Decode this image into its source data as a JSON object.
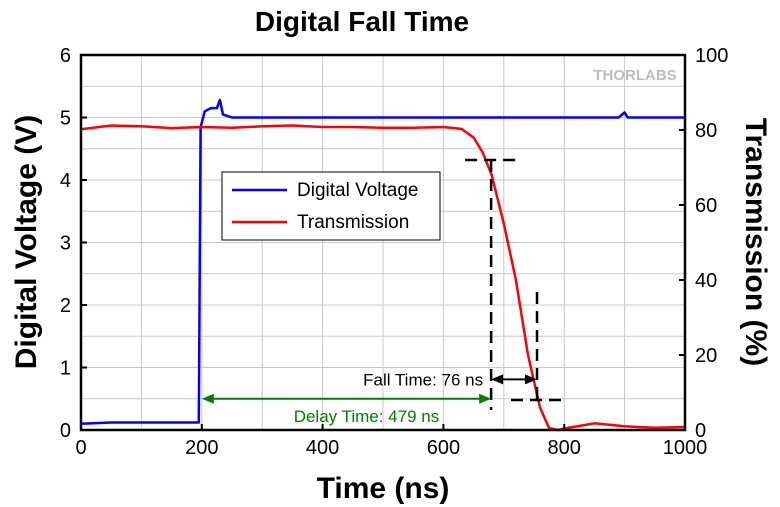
{
  "chart_data": {
    "type": "line",
    "title": "Digital Fall Time",
    "xlabel": "Time (ns)",
    "ylabel_left": "Digital Voltage (V)",
    "ylabel_right": "Transmission (%)",
    "xlim": [
      0,
      1000
    ],
    "ylim_left": [
      0,
      6
    ],
    "ylim_right": [
      0,
      100
    ],
    "x_ticks": [
      "0",
      "200",
      "400",
      "600",
      "800",
      "1000"
    ],
    "y_left_ticks": [
      "0",
      "1",
      "2",
      "3",
      "4",
      "5",
      "6"
    ],
    "y_right_ticks": [
      "0",
      "20",
      "40",
      "60",
      "80",
      "100"
    ],
    "grid": true,
    "legend_position": "center-left",
    "watermark": "THORLABS",
    "series": [
      {
        "name": "Digital Voltage",
        "axis": "left",
        "color": "#0000ff",
        "points": [
          [
            0,
            0.1
          ],
          [
            50,
            0.12
          ],
          [
            100,
            0.12
          ],
          [
            150,
            0.12
          ],
          [
            195,
            0.12
          ],
          [
            198,
            4.85
          ],
          [
            205,
            5.1
          ],
          [
            215,
            5.15
          ],
          [
            225,
            5.15
          ],
          [
            230,
            5.28
          ],
          [
            235,
            5.05
          ],
          [
            250,
            5.0
          ],
          [
            400,
            5.0
          ],
          [
            600,
            5.0
          ],
          [
            890,
            5.0
          ],
          [
            900,
            5.08
          ],
          [
            905,
            5.0
          ],
          [
            1000,
            5.0
          ]
        ]
      },
      {
        "name": "Transmission",
        "axis": "right",
        "color": "#ff0000",
        "points": [
          [
            0,
            80.2
          ],
          [
            50,
            81.2
          ],
          [
            100,
            81.0
          ],
          [
            150,
            80.5
          ],
          [
            200,
            80.8
          ],
          [
            250,
            80.6
          ],
          [
            300,
            81.0
          ],
          [
            350,
            81.2
          ],
          [
            400,
            80.8
          ],
          [
            450,
            80.8
          ],
          [
            500,
            80.6
          ],
          [
            550,
            80.6
          ],
          [
            600,
            80.8
          ],
          [
            630,
            80.3
          ],
          [
            650,
            78.0
          ],
          [
            665,
            74.0
          ],
          [
            680,
            68.0
          ],
          [
            700,
            55.0
          ],
          [
            720,
            40.0
          ],
          [
            740,
            20.0
          ],
          [
            760,
            6.0
          ],
          [
            775,
            0.5
          ],
          [
            790,
            0.0
          ],
          [
            800,
            0.4
          ],
          [
            850,
            1.8
          ],
          [
            900,
            1.0
          ],
          [
            950,
            0.6
          ],
          [
            1000,
            0.8
          ]
        ]
      }
    ],
    "annotations": {
      "delay_label": "Delay Time: 479 ns",
      "delay_start": 200,
      "delay_end": 679,
      "fall_label": "Fall Time: 76 ns",
      "fall_start": 679,
      "fall_end": 755,
      "fall_high_level": 72,
      "fall_low_level": 8,
      "delay_color": "#008000",
      "fall_color": "#000000"
    }
  }
}
